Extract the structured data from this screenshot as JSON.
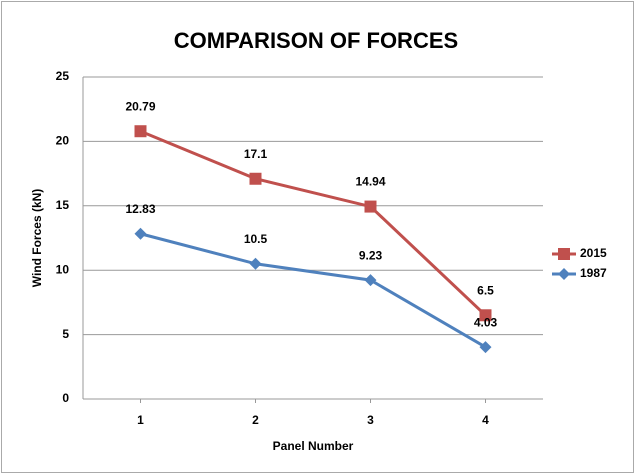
{
  "chart_data": {
    "type": "line",
    "title": "COMPARISON OF FORCES",
    "x_label": "Panel Number",
    "y_label": "Wind Forces (kN)",
    "categories": [
      "1",
      "2",
      "3",
      "4"
    ],
    "series": [
      {
        "name": "2015",
        "color": "#c0504d",
        "marker": "square",
        "values": [
          20.79,
          17.1,
          14.94,
          6.5
        ]
      },
      {
        "name": "1987",
        "color": "#4f81bd",
        "marker": "diamond",
        "values": [
          12.83,
          10.5,
          9.23,
          4.03
        ]
      }
    ],
    "ylim": [
      0,
      25
    ],
    "yticks": [
      0,
      5,
      10,
      15,
      20,
      25
    ],
    "grid": true,
    "legend": "right"
  }
}
